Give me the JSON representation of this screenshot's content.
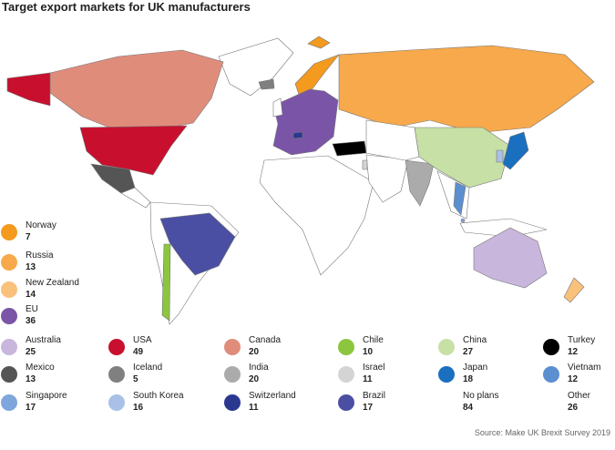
{
  "title": "Target export markets for UK manufacturers",
  "source": "Source: Make UK Brexit Survey 2019",
  "legend": {
    "items": [
      {
        "name": "Norway",
        "value": 7,
        "color": "#f39a1f"
      },
      {
        "name": "Russia",
        "value": 13,
        "color": "#f7a94b"
      },
      {
        "name": "New Zealand",
        "value": 14,
        "color": "#f9c17c"
      },
      {
        "name": "EU",
        "value": 36,
        "color": "#7a55a7"
      },
      {
        "name": "Australia",
        "value": 25,
        "color": "#c9b6dc"
      },
      {
        "name": "USA",
        "value": 49,
        "color": "#c8102e"
      },
      {
        "name": "Canada",
        "value": 20,
        "color": "#e08c7b"
      },
      {
        "name": "Chile",
        "value": 10,
        "color": "#8cc63f"
      },
      {
        "name": "China",
        "value": 27,
        "color": "#c6e0a6"
      },
      {
        "name": "Turkey",
        "value": 12,
        "color": "#000000"
      },
      {
        "name": "Mexico",
        "value": 13,
        "color": "#555555"
      },
      {
        "name": "Iceland",
        "value": 5,
        "color": "#808080"
      },
      {
        "name": "India",
        "value": 20,
        "color": "#ababab"
      },
      {
        "name": "Israel",
        "value": 11,
        "color": "#d4d4d4"
      },
      {
        "name": "Japan",
        "value": 18,
        "color": "#1a6fbf"
      },
      {
        "name": "Vietnam",
        "value": 12,
        "color": "#5b8fd0"
      },
      {
        "name": "Singapore",
        "value": 17,
        "color": "#7ea6dc"
      },
      {
        "name": "South Korea",
        "value": 16,
        "color": "#a9c1e7"
      },
      {
        "name": "Switzerland",
        "value": 11,
        "color": "#2b3890"
      },
      {
        "name": "Brazil",
        "value": 17,
        "color": "#4b4fa3"
      },
      {
        "name": "No plans",
        "value": 84
      },
      {
        "name": "Other",
        "value": 26
      }
    ]
  }
}
